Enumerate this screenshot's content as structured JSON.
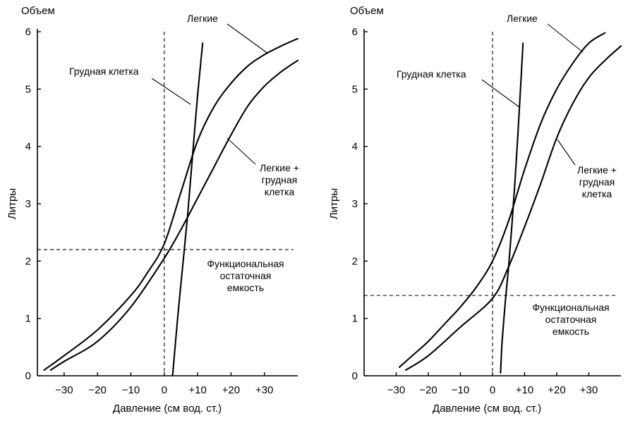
{
  "chart_data": [
    {
      "type": "line",
      "volume_label": "Объем",
      "ylabel": "Литры",
      "xlabel": "Давление (см вод. ст.)",
      "xlim": [
        -38,
        40
      ],
      "ylim": [
        0,
        6
      ],
      "xticks": [
        -30,
        -20,
        -10,
        0,
        10,
        20,
        30
      ],
      "xtick_labels": [
        "−30",
        "−20",
        "−10",
        "0",
        "+10",
        "+20",
        "+30"
      ],
      "yticks": [
        0,
        1,
        2,
        3,
        4,
        5,
        6
      ],
      "ytick_labels": [
        "0",
        "1",
        "2",
        "3",
        "4",
        "5",
        "6"
      ],
      "reference_lines": {
        "x": 0,
        "y": 2.2,
        "y_label": "Функциональная остаточная емкость"
      },
      "grid": false,
      "series": [
        {
          "name": "Грудная клетка",
          "x": [
            2.5,
            4,
            5,
            6,
            7,
            8,
            9,
            10,
            11,
            11.5
          ],
          "y": [
            0.0,
            1.0,
            1.6,
            2.2,
            2.8,
            3.5,
            4.2,
            4.9,
            5.5,
            5.8
          ]
        },
        {
          "name": "Легкие",
          "x": [
            -36,
            -30,
            -20,
            -10,
            -5,
            0,
            5,
            10,
            15,
            20,
            25,
            30,
            35,
            40
          ],
          "y": [
            0.1,
            0.35,
            0.8,
            1.4,
            1.8,
            2.3,
            3.2,
            4.1,
            4.7,
            5.1,
            5.4,
            5.6,
            5.75,
            5.88
          ]
        },
        {
          "name": "Легкие + грудная клетка",
          "x": [
            -34,
            -30,
            -20,
            -10,
            0,
            5,
            10,
            15,
            20,
            25,
            30,
            35,
            40
          ],
          "y": [
            0.1,
            0.25,
            0.6,
            1.2,
            2.05,
            2.55,
            3.1,
            3.65,
            4.2,
            4.7,
            5.05,
            5.3,
            5.5
          ]
        }
      ],
      "labels": {
        "lungs": "Легкие",
        "chest": "Грудная клетка",
        "combined": [
          "Легкие +",
          "грудная",
          "клетка"
        ],
        "frc": [
          "Функциональная",
          "остаточная",
          "емкость"
        ]
      }
    },
    {
      "type": "line",
      "volume_label": "Объем",
      "ylabel": "Литры",
      "xlabel": "Давление (см вод. ст.)",
      "xlim": [
        -40,
        40
      ],
      "ylim": [
        0,
        6
      ],
      "xticks": [
        -30,
        -20,
        -10,
        0,
        10,
        20,
        30
      ],
      "xtick_labels": [
        "−30",
        "−20",
        "−10",
        "0",
        "+10",
        "+20",
        "+30"
      ],
      "yticks": [
        0,
        1,
        2,
        3,
        4,
        5,
        6
      ],
      "ytick_labels": [
        "0",
        "1",
        "2",
        "3",
        "4",
        "5",
        "6"
      ],
      "reference_lines": {
        "x": 0,
        "y": 1.4,
        "y_label": "Функциональная остаточная емкость"
      },
      "grid": false,
      "series": [
        {
          "name": "Грудная клетка",
          "x": [
            2.5,
            3,
            4,
            5,
            6,
            7,
            8,
            9,
            9.5
          ],
          "y": [
            0.05,
            0.6,
            1.3,
            1.9,
            2.6,
            3.4,
            4.3,
            5.3,
            5.8
          ]
        },
        {
          "name": "Легкие",
          "x": [
            -29,
            -25,
            -20,
            -15,
            -10,
            -5,
            0,
            5,
            10,
            15,
            20,
            25,
            30,
            35
          ],
          "y": [
            0.15,
            0.35,
            0.6,
            0.9,
            1.2,
            1.55,
            2.0,
            2.7,
            3.6,
            4.4,
            5.0,
            5.45,
            5.8,
            5.98
          ]
        },
        {
          "name": "Легкие + грудная клетка",
          "x": [
            -27,
            -20,
            -10,
            0,
            5,
            10,
            15,
            20,
            25,
            30,
            35,
            40
          ],
          "y": [
            0.1,
            0.35,
            0.85,
            1.35,
            1.9,
            2.6,
            3.35,
            4.15,
            4.75,
            5.2,
            5.5,
            5.75
          ]
        }
      ],
      "labels": {
        "lungs": "Легкие",
        "chest": "Грудная клетка",
        "combined": [
          "Легкие +",
          "грудная",
          "клетка"
        ],
        "frc": [
          "Функциональная",
          "остаточная",
          "емкость"
        ]
      }
    }
  ]
}
